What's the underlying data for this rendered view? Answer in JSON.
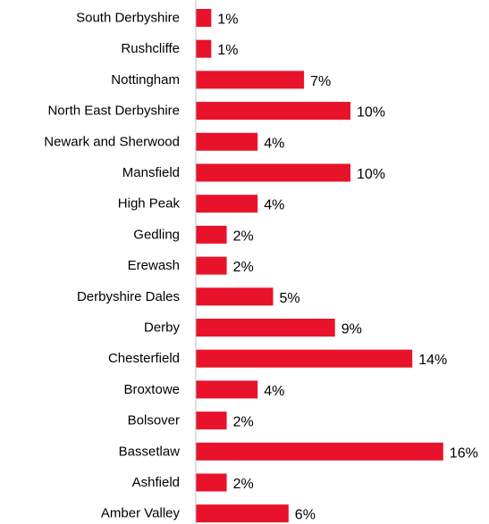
{
  "chart_data": {
    "type": "bar",
    "orientation": "horizontal",
    "categories": [
      "South Derbyshire",
      "Rushcliffe",
      "Nottingham",
      "North East Derbyshire",
      "Newark and Sherwood",
      "Mansfield",
      "High Peak",
      "Gedling",
      "Erewash",
      "Derbyshire Dales",
      "Derby",
      "Chesterfield",
      "Broxtowe",
      "Bolsover",
      "Bassetlaw",
      "Ashfield",
      "Amber Valley"
    ],
    "values": [
      1,
      1,
      7,
      10,
      4,
      10,
      4,
      2,
      2,
      5,
      9,
      14,
      4,
      2,
      16,
      2,
      6
    ],
    "value_labels": [
      "1%",
      "1%",
      "7%",
      "10%",
      "4%",
      "10%",
      "4%",
      "2%",
      "2%",
      "5%",
      "9%",
      "14%",
      "4%",
      "2%",
      "16%",
      "2%",
      "6%"
    ],
    "unit": "%",
    "xlim": [
      0,
      16
    ],
    "grid": false,
    "legend": "none",
    "bar_color": "#e8132b",
    "axis_color": "#bfbfbf"
  }
}
